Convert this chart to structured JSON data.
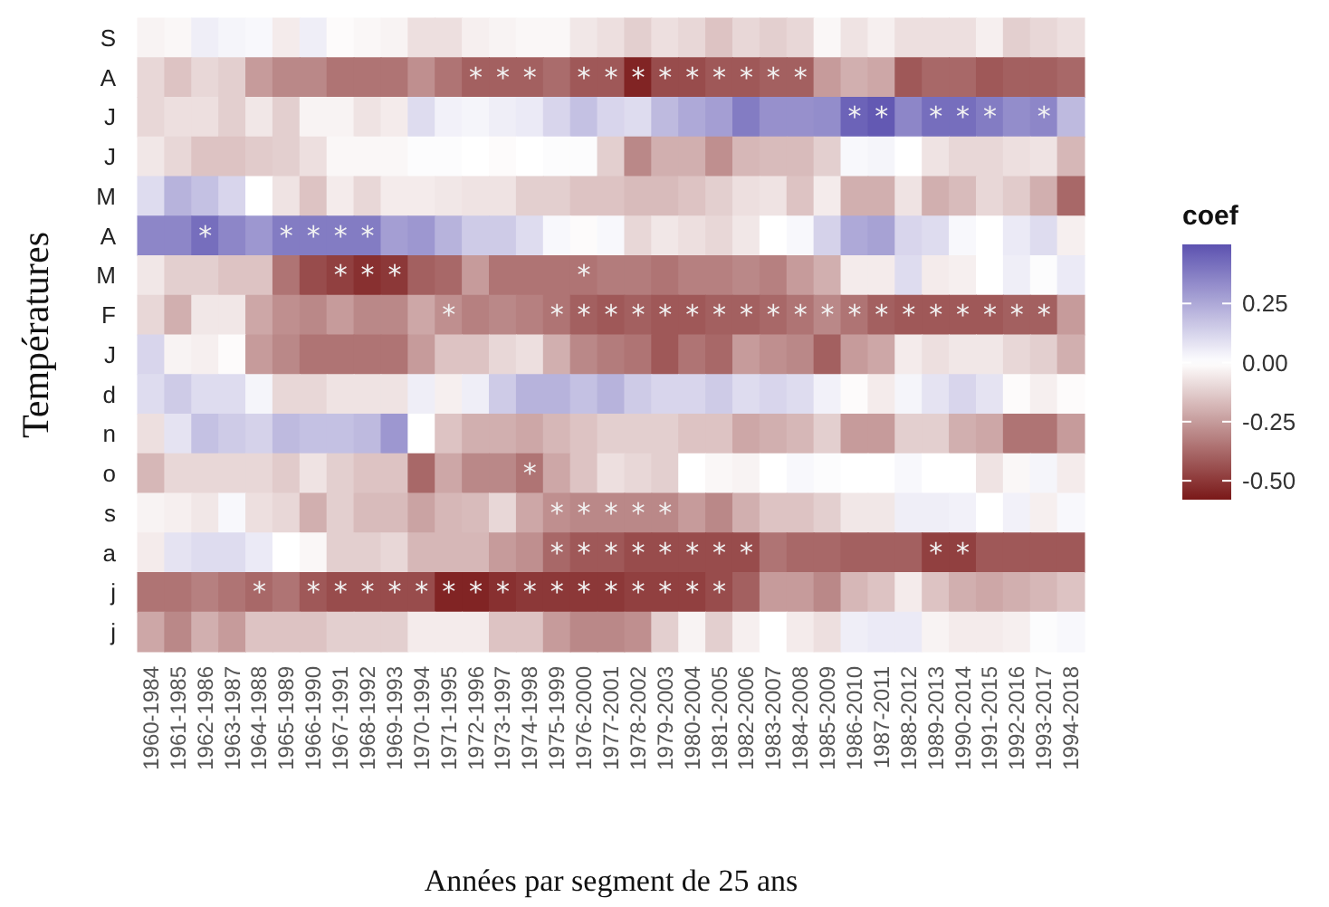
{
  "chart_data": {
    "type": "heatmap",
    "xlabel": "Années par segment de 25 ans",
    "ylabel": "Températures",
    "clabel": "coef",
    "categories": [
      "1960-1984",
      "1961-1985",
      "1962-1986",
      "1963-1987",
      "1964-1988",
      "1965-1989",
      "1966-1990",
      "1967-1991",
      "1968-1992",
      "1969-1993",
      "1970-1994",
      "1971-1995",
      "1972-1996",
      "1973-1997",
      "1974-1998",
      "1975-1999",
      "1976-2000",
      "1977-2001",
      "1978-2002",
      "1979-2003",
      "1980-2004",
      "1981-2005",
      "1982-2006",
      "1983-2007",
      "1984-2008",
      "1985-2009",
      "1986-2010",
      "1987-2011",
      "1988-2012",
      "1989-2013",
      "1990-2014",
      "1991-2015",
      "1992-2016",
      "1993-2017",
      "1994-2018"
    ],
    "y_categories": [
      "S",
      "A",
      "J",
      "J",
      "M",
      "A",
      "M",
      "F",
      "J",
      "d",
      "n",
      "o",
      "s",
      "a",
      "j",
      "j"
    ],
    "clim": [
      -0.58,
      0.5
    ],
    "cticks": [
      0.25,
      {
        "value": 0,
        "label": "0.00"
      },
      -0.25,
      {
        "value": -0.5,
        "label": "-0.50"
      }
    ],
    "cells": [
      [
        -0.03,
        -0.02,
        0.05,
        0.03,
        0.02,
        -0.05,
        0.05,
        -0.01,
        -0.02,
        -0.03,
        -0.08,
        -0.08,
        -0.04,
        -0.03,
        -0.02,
        -0.02,
        -0.06,
        -0.08,
        -0.12,
        -0.08,
        -0.1,
        -0.15,
        -0.1,
        -0.12,
        -0.1,
        -0.02,
        -0.07,
        -0.04,
        -0.08,
        -0.08,
        -0.08,
        -0.04,
        -0.12,
        -0.1,
        -0.08
      ],
      [
        -0.1,
        -0.15,
        -0.1,
        -0.12,
        -0.25,
        -0.3,
        -0.3,
        -0.35,
        -0.35,
        -0.35,
        -0.28,
        -0.35,
        -0.4,
        -0.4,
        -0.4,
        -0.37,
        -0.42,
        -0.42,
        -0.55,
        -0.45,
        -0.45,
        -0.42,
        -0.42,
        -0.4,
        -0.4,
        -0.25,
        -0.2,
        -0.22,
        -0.42,
        -0.38,
        -0.38,
        -0.42,
        -0.4,
        -0.4,
        -0.38
      ],
      [
        -0.1,
        -0.08,
        -0.08,
        -0.12,
        -0.06,
        -0.12,
        -0.03,
        -0.03,
        -0.07,
        -0.05,
        0.1,
        0.04,
        0.03,
        0.05,
        0.06,
        0.12,
        0.18,
        0.12,
        0.1,
        0.2,
        0.25,
        0.28,
        0.38,
        0.32,
        0.32,
        0.33,
        0.45,
        0.48,
        0.35,
        0.42,
        0.42,
        0.38,
        0.33,
        0.35,
        0.2
      ],
      [
        -0.06,
        -0.1,
        -0.15,
        -0.15,
        -0.13,
        -0.12,
        -0.08,
        -0.02,
        -0.02,
        -0.02,
        0.01,
        0.01,
        0.0,
        -0.01,
        0.0,
        0.01,
        0.01,
        -0.12,
        -0.3,
        -0.2,
        -0.2,
        -0.28,
        -0.18,
        -0.17,
        -0.17,
        -0.12,
        0.02,
        0.03,
        0.0,
        -0.07,
        -0.1,
        -0.1,
        -0.08,
        -0.07,
        -0.18
      ],
      [
        0.1,
        0.22,
        0.18,
        0.12,
        0.0,
        -0.07,
        -0.15,
        -0.05,
        -0.1,
        -0.05,
        -0.05,
        -0.06,
        -0.07,
        -0.07,
        -0.12,
        -0.12,
        -0.15,
        -0.15,
        -0.17,
        -0.17,
        -0.15,
        -0.12,
        -0.08,
        -0.07,
        -0.15,
        -0.05,
        -0.2,
        -0.2,
        -0.07,
        -0.2,
        -0.17,
        -0.1,
        -0.13,
        -0.2,
        -0.38
      ],
      [
        0.35,
        0.35,
        0.42,
        0.35,
        0.3,
        0.38,
        0.38,
        0.38,
        0.38,
        0.28,
        0.3,
        0.22,
        0.15,
        0.15,
        0.1,
        0.02,
        -0.01,
        0.02,
        -0.1,
        -0.06,
        -0.08,
        -0.1,
        -0.06,
        0.0,
        0.02,
        0.13,
        0.25,
        0.27,
        0.12,
        0.1,
        0.02,
        0.0,
        0.06,
        0.1,
        -0.04
      ],
      [
        -0.06,
        -0.12,
        -0.12,
        -0.15,
        -0.15,
        -0.35,
        -0.45,
        -0.48,
        -0.52,
        -0.5,
        -0.4,
        -0.38,
        -0.25,
        -0.35,
        -0.35,
        -0.35,
        -0.35,
        -0.33,
        -0.33,
        -0.35,
        -0.32,
        -0.32,
        -0.3,
        -0.32,
        -0.25,
        -0.2,
        -0.05,
        -0.05,
        0.1,
        -0.05,
        -0.04,
        0.0,
        0.05,
        0.01,
        0.06
      ],
      [
        -0.1,
        -0.2,
        -0.06,
        -0.06,
        -0.22,
        -0.28,
        -0.3,
        -0.25,
        -0.3,
        -0.3,
        -0.22,
        -0.28,
        -0.32,
        -0.3,
        -0.32,
        -0.35,
        -0.4,
        -0.42,
        -0.4,
        -0.42,
        -0.42,
        -0.4,
        -0.4,
        -0.38,
        -0.35,
        -0.3,
        -0.35,
        -0.4,
        -0.42,
        -0.42,
        -0.42,
        -0.42,
        -0.4,
        -0.4,
        -0.25
      ],
      [
        0.12,
        -0.03,
        -0.04,
        -0.01,
        -0.25,
        -0.3,
        -0.35,
        -0.35,
        -0.35,
        -0.35,
        -0.25,
        -0.15,
        -0.15,
        -0.1,
        -0.08,
        -0.2,
        -0.3,
        -0.33,
        -0.35,
        -0.42,
        -0.35,
        -0.38,
        -0.25,
        -0.28,
        -0.3,
        -0.4,
        -0.25,
        -0.22,
        -0.05,
        -0.08,
        -0.06,
        -0.06,
        -0.1,
        -0.12,
        -0.2
      ],
      [
        0.1,
        0.15,
        0.1,
        0.1,
        0.03,
        -0.1,
        -0.1,
        -0.07,
        -0.07,
        -0.07,
        0.05,
        -0.04,
        0.05,
        0.15,
        0.22,
        0.22,
        0.18,
        0.22,
        0.15,
        0.12,
        0.12,
        0.15,
        0.1,
        0.12,
        0.1,
        0.04,
        -0.01,
        -0.05,
        0.03,
        0.08,
        0.12,
        0.08,
        -0.01,
        -0.04,
        -0.01
      ],
      [
        -0.08,
        0.08,
        0.18,
        0.15,
        0.13,
        0.2,
        0.18,
        0.18,
        0.2,
        0.3,
        0.0,
        -0.15,
        -0.2,
        -0.2,
        -0.22,
        -0.18,
        -0.15,
        -0.12,
        -0.12,
        -0.12,
        -0.15,
        -0.15,
        -0.22,
        -0.2,
        -0.18,
        -0.12,
        -0.25,
        -0.25,
        -0.12,
        -0.12,
        -0.2,
        -0.22,
        -0.35,
        -0.35,
        -0.25
      ],
      [
        -0.18,
        -0.1,
        -0.1,
        -0.1,
        -0.1,
        -0.13,
        -0.07,
        -0.12,
        -0.15,
        -0.15,
        -0.38,
        -0.22,
        -0.3,
        -0.3,
        -0.35,
        -0.22,
        -0.15,
        -0.08,
        -0.1,
        -0.12,
        0.0,
        -0.02,
        -0.03,
        0.0,
        0.02,
        0.01,
        0.0,
        0.0,
        0.02,
        0.0,
        0.0,
        -0.07,
        -0.02,
        0.03,
        -0.05
      ],
      [
        -0.03,
        -0.04,
        -0.06,
        0.02,
        -0.08,
        -0.1,
        -0.2,
        -0.12,
        -0.17,
        -0.17,
        -0.23,
        -0.18,
        -0.17,
        -0.1,
        -0.22,
        -0.28,
        -0.3,
        -0.3,
        -0.3,
        -0.3,
        -0.25,
        -0.3,
        -0.2,
        -0.15,
        -0.15,
        -0.12,
        -0.06,
        -0.06,
        0.05,
        0.05,
        0.04,
        0.0,
        0.04,
        -0.04,
        0.02
      ],
      [
        -0.05,
        0.08,
        0.1,
        0.1,
        0.06,
        0.0,
        -0.02,
        -0.12,
        -0.12,
        -0.1,
        -0.18,
        -0.18,
        -0.18,
        -0.25,
        -0.28,
        -0.38,
        -0.42,
        -0.42,
        -0.45,
        -0.45,
        -0.45,
        -0.45,
        -0.45,
        -0.35,
        -0.38,
        -0.38,
        -0.4,
        -0.4,
        -0.4,
        -0.48,
        -0.48,
        -0.42,
        -0.42,
        -0.42,
        -0.42
      ],
      [
        -0.35,
        -0.35,
        -0.32,
        -0.35,
        -0.38,
        -0.35,
        -0.42,
        -0.45,
        -0.45,
        -0.45,
        -0.45,
        -0.55,
        -0.55,
        -0.52,
        -0.5,
        -0.5,
        -0.5,
        -0.5,
        -0.48,
        -0.48,
        -0.48,
        -0.45,
        -0.4,
        -0.25,
        -0.25,
        -0.3,
        -0.18,
        -0.15,
        -0.05,
        -0.15,
        -0.2,
        -0.22,
        -0.2,
        -0.18,
        -0.15
      ],
      [
        -0.22,
        -0.3,
        -0.2,
        -0.25,
        -0.15,
        -0.15,
        -0.15,
        -0.12,
        -0.12,
        -0.12,
        -0.05,
        -0.05,
        -0.05,
        -0.15,
        -0.15,
        -0.25,
        -0.3,
        -0.3,
        -0.28,
        -0.12,
        -0.03,
        -0.12,
        -0.04,
        0.0,
        -0.05,
        -0.08,
        0.05,
        0.06,
        0.06,
        -0.03,
        -0.05,
        -0.05,
        -0.04,
        0.01,
        0.02
      ]
    ],
    "cell_labels": [
      [
        null,
        null,
        null,
        null,
        null,
        null,
        null,
        null,
        null,
        null,
        null,
        null,
        null,
        null,
        null,
        null,
        null,
        null,
        null,
        null,
        null,
        null,
        null,
        null,
        null,
        null,
        null,
        null,
        null,
        null,
        null,
        null,
        null,
        null,
        null
      ],
      [
        null,
        null,
        null,
        null,
        null,
        null,
        null,
        null,
        null,
        null,
        null,
        null,
        "*",
        "*",
        "*",
        null,
        "*",
        "*",
        "*",
        "*",
        "*",
        "*",
        "*",
        "*",
        "*",
        null,
        null,
        null,
        null,
        null,
        null,
        null,
        null,
        null,
        null
      ],
      [
        null,
        null,
        null,
        null,
        null,
        null,
        null,
        null,
        null,
        null,
        null,
        null,
        null,
        null,
        null,
        null,
        null,
        null,
        null,
        null,
        null,
        null,
        null,
        null,
        null,
        null,
        "*",
        "*",
        null,
        "*",
        "*",
        "*",
        null,
        "*",
        null
      ],
      [
        null,
        null,
        null,
        null,
        null,
        null,
        null,
        null,
        null,
        null,
        null,
        null,
        null,
        null,
        null,
        null,
        null,
        null,
        null,
        null,
        null,
        null,
        null,
        null,
        null,
        null,
        null,
        null,
        null,
        null,
        null,
        null,
        null,
        null,
        null
      ],
      [
        null,
        null,
        null,
        null,
        null,
        null,
        null,
        null,
        null,
        null,
        null,
        null,
        null,
        null,
        null,
        null,
        null,
        null,
        null,
        null,
        null,
        null,
        null,
        null,
        null,
        null,
        null,
        null,
        null,
        null,
        null,
        null,
        null,
        null,
        null
      ],
      [
        null,
        null,
        "*",
        null,
        null,
        "*",
        "*",
        "*",
        "*",
        null,
        null,
        null,
        null,
        null,
        null,
        null,
        null,
        null,
        null,
        null,
        null,
        null,
        null,
        null,
        null,
        null,
        null,
        null,
        null,
        null,
        null,
        null,
        null,
        null,
        null
      ],
      [
        null,
        null,
        null,
        null,
        null,
        null,
        null,
        "*",
        "*",
        "*",
        null,
        null,
        null,
        null,
        null,
        null,
        "*",
        null,
        null,
        null,
        null,
        null,
        null,
        null,
        null,
        null,
        null,
        null,
        null,
        null,
        null,
        null,
        null,
        null,
        null
      ],
      [
        null,
        null,
        null,
        null,
        null,
        null,
        null,
        null,
        null,
        null,
        null,
        "*",
        null,
        null,
        null,
        "*",
        "*",
        "*",
        "*",
        "*",
        "*",
        "*",
        "*",
        "*",
        "*",
        "*",
        "*",
        "*",
        "*",
        "*",
        "*",
        "*",
        "*",
        "*",
        null
      ],
      [
        null,
        null,
        null,
        null,
        null,
        null,
        null,
        null,
        null,
        null,
        null,
        null,
        null,
        null,
        null,
        null,
        null,
        null,
        null,
        null,
        null,
        null,
        null,
        null,
        null,
        null,
        null,
        null,
        null,
        null,
        null,
        null,
        null,
        null,
        null
      ],
      [
        null,
        null,
        null,
        null,
        null,
        null,
        null,
        null,
        null,
        null,
        null,
        null,
        null,
        null,
        null,
        null,
        null,
        null,
        null,
        null,
        null,
        null,
        null,
        null,
        null,
        null,
        null,
        null,
        null,
        null,
        null,
        null,
        null,
        null,
        null
      ],
      [
        null,
        null,
        null,
        null,
        null,
        null,
        null,
        null,
        null,
        null,
        null,
        null,
        null,
        null,
        null,
        null,
        null,
        null,
        null,
        null,
        null,
        null,
        null,
        null,
        null,
        null,
        null,
        null,
        null,
        null,
        null,
        null,
        null,
        null,
        null
      ],
      [
        null,
        null,
        null,
        null,
        null,
        null,
        null,
        null,
        null,
        null,
        null,
        null,
        null,
        null,
        "*",
        null,
        null,
        null,
        null,
        null,
        null,
        null,
        null,
        null,
        null,
        null,
        null,
        null,
        null,
        null,
        null,
        null,
        null,
        null,
        null
      ],
      [
        null,
        null,
        null,
        null,
        null,
        null,
        null,
        null,
        null,
        null,
        null,
        null,
        null,
        null,
        null,
        "*",
        "*",
        "*",
        "*",
        "*",
        null,
        null,
        null,
        null,
        null,
        null,
        null,
        null,
        null,
        null,
        null,
        null,
        null,
        null,
        null
      ],
      [
        null,
        null,
        null,
        null,
        null,
        null,
        null,
        null,
        null,
        null,
        null,
        null,
        null,
        null,
        null,
        "*",
        "*",
        "*",
        "*",
        "*",
        "*",
        "*",
        "*",
        null,
        null,
        null,
        null,
        null,
        null,
        "*",
        "*",
        null,
        null,
        null,
        null
      ],
      [
        null,
        null,
        null,
        null,
        "*",
        null,
        "*",
        "*",
        "*",
        "*",
        "*",
        "*",
        "*",
        "*",
        "*",
        "*",
        "*",
        "*",
        "*",
        "*",
        "*",
        "*",
        null,
        null,
        null,
        null,
        null,
        null,
        null,
        null,
        null,
        null,
        null,
        null,
        null
      ],
      [
        null,
        null,
        null,
        null,
        null,
        null,
        null,
        null,
        null,
        null,
        null,
        null,
        null,
        null,
        null,
        null,
        null,
        null,
        null,
        null,
        null,
        null,
        null,
        null,
        null,
        null,
        null,
        null,
        null,
        null,
        null,
        null,
        null,
        null,
        null
      ]
    ]
  }
}
